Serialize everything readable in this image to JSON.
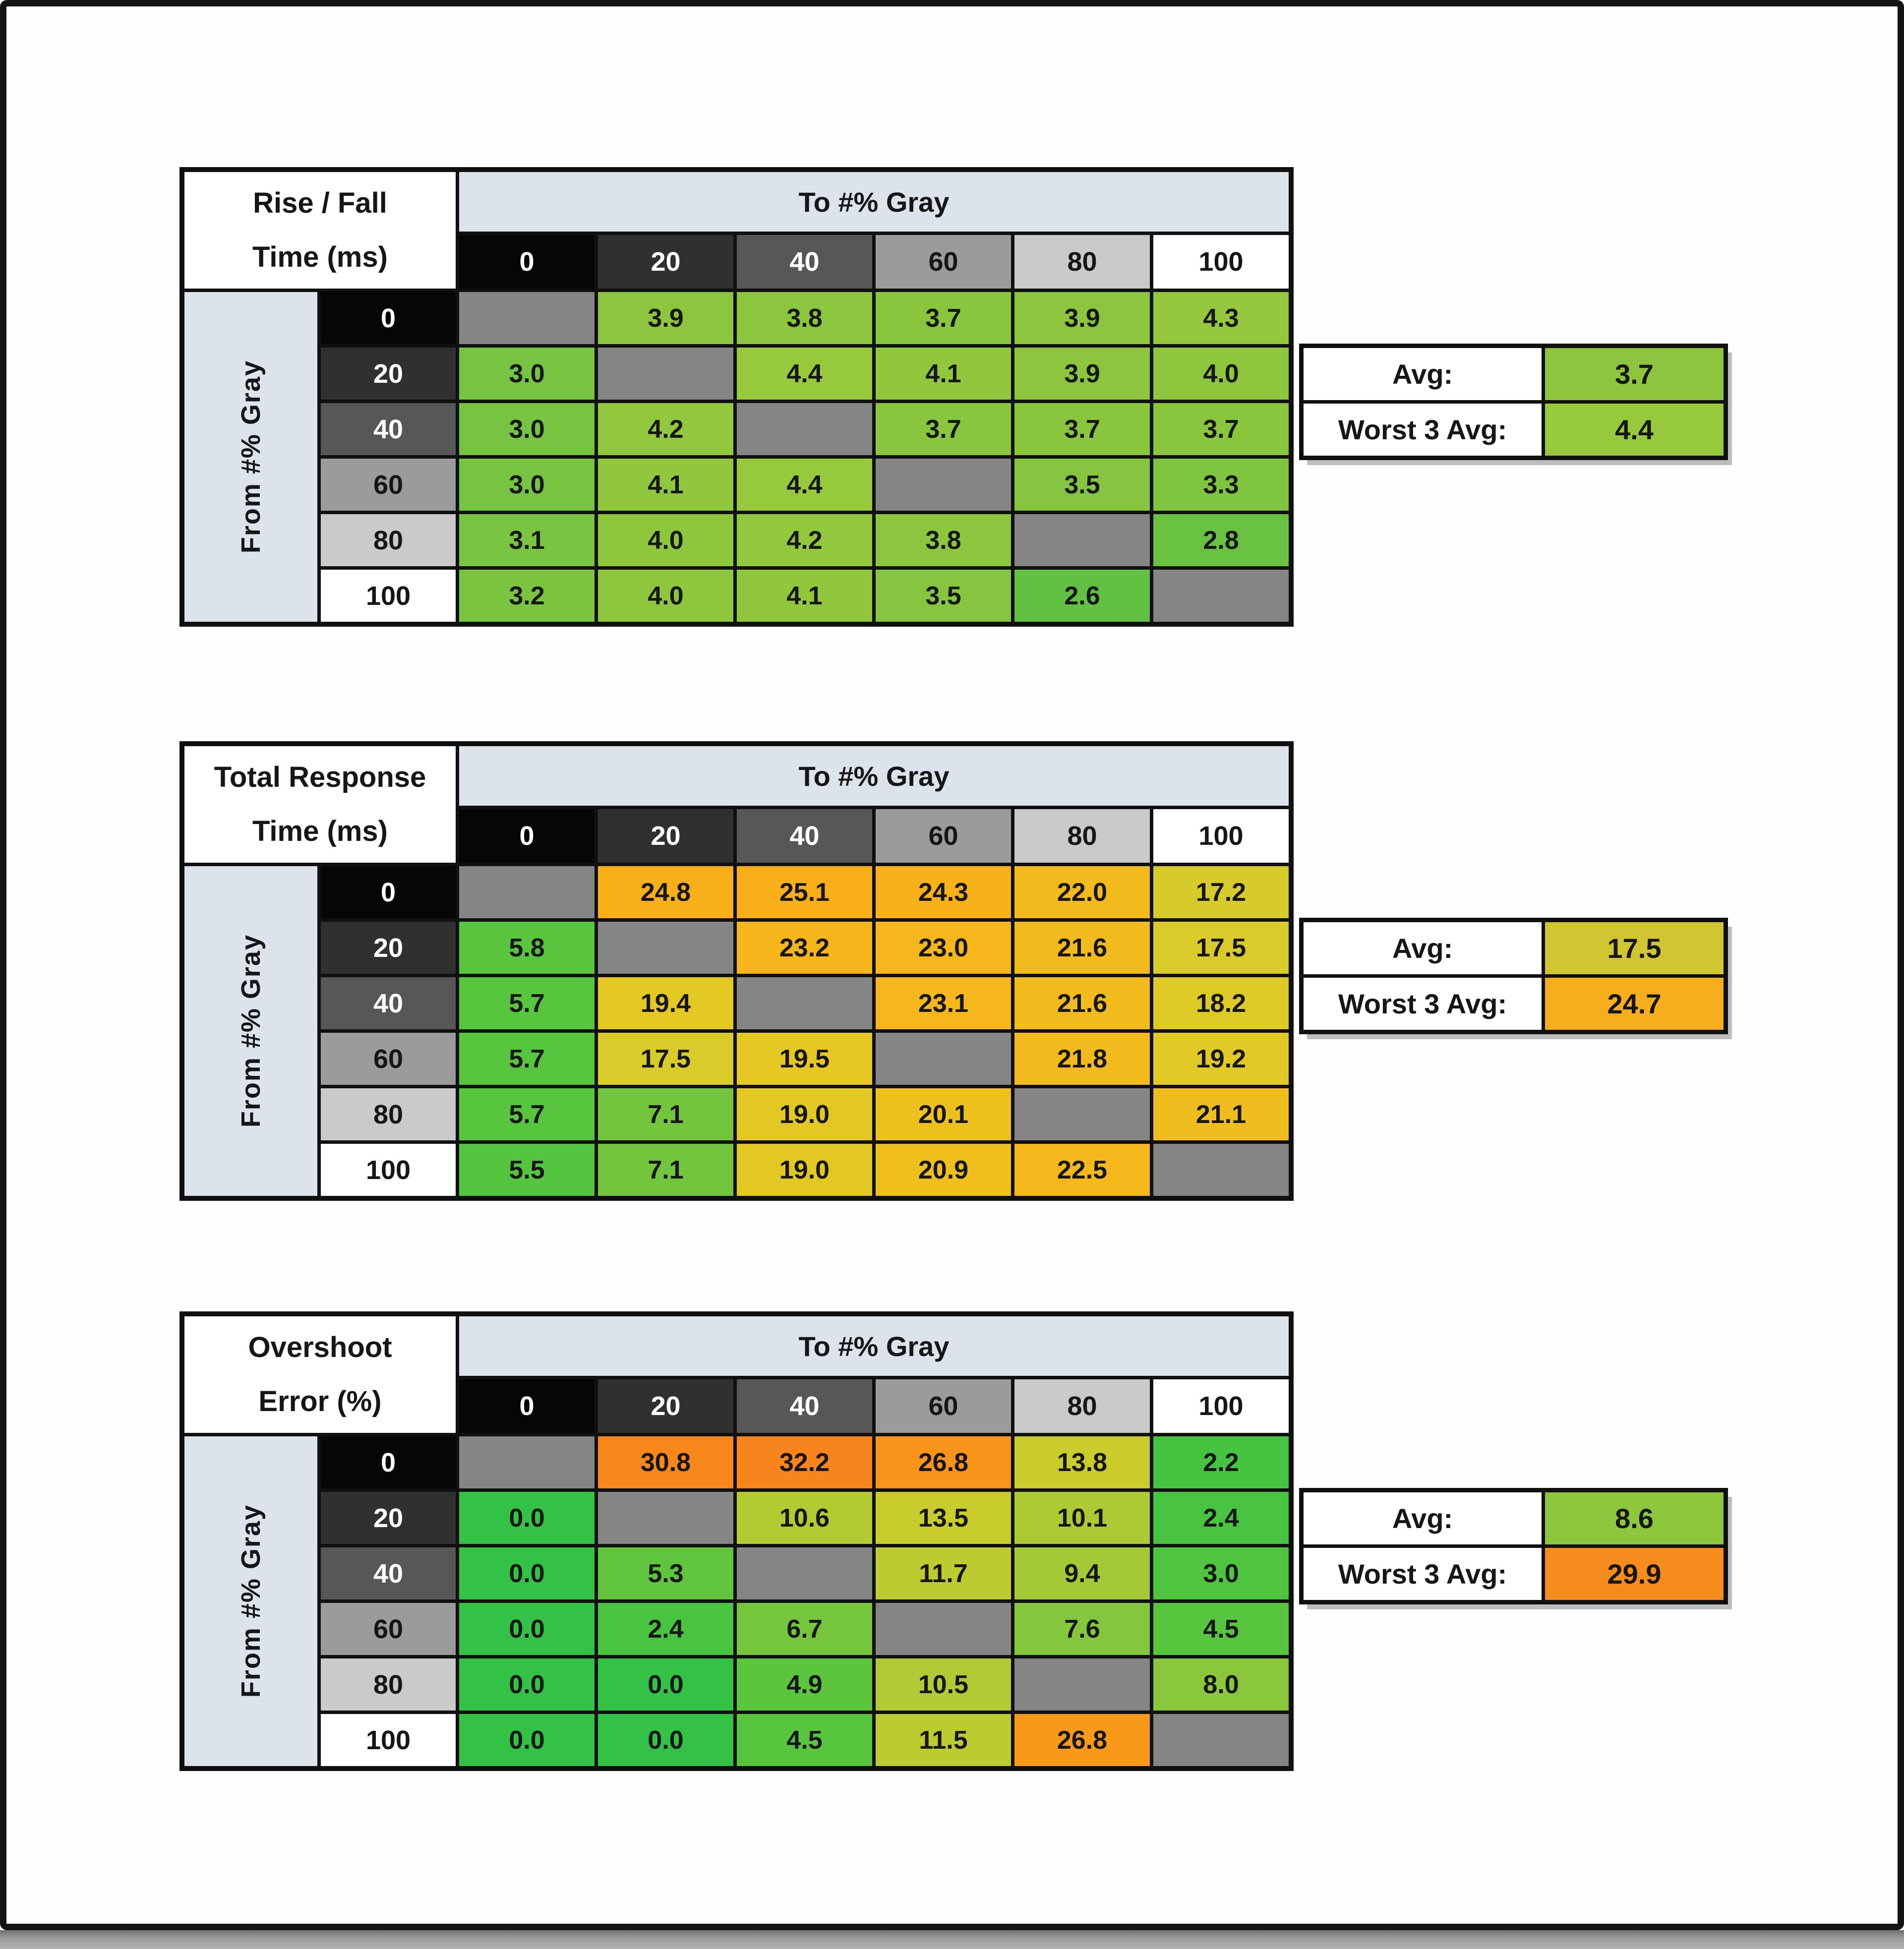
{
  "shared": {
    "to_axis_label": "To #% Gray",
    "from_axis_label": "From #% Gray",
    "levels": [
      "0",
      "20",
      "40",
      "60",
      "80",
      "100"
    ],
    "level_bg": [
      "#060606",
      "#303030",
      "#575757",
      "#9b9b9b",
      "#cacaca",
      "#ffffff"
    ],
    "level_fg": [
      "#ffffff",
      "#ffffff",
      "#ffffff",
      "#161616",
      "#161616",
      "#161616"
    ],
    "header_band_bg": "#dce3ea",
    "diagonal_bg": "#858585",
    "avg_label": "Avg:",
    "worst3_label": "Worst 3 Avg:"
  },
  "chart_data": [
    {
      "type": "heatmap",
      "title": [
        "Rise / Fall",
        "Time (ms)"
      ],
      "x_axis_label": "To #% Gray",
      "y_axis_label": "From #% Gray",
      "x_ticks": [
        "0",
        "20",
        "40",
        "60",
        "80",
        "100"
      ],
      "y_ticks": [
        "0",
        "20",
        "40",
        "60",
        "80",
        "100"
      ],
      "values": [
        [
          null,
          "3.9",
          "3.8",
          "3.7",
          "3.9",
          "4.3"
        ],
        [
          "3.0",
          null,
          "4.4",
          "4.1",
          "3.9",
          "4.0"
        ],
        [
          "3.0",
          "4.2",
          null,
          "3.7",
          "3.7",
          "3.7"
        ],
        [
          "3.0",
          "4.1",
          "4.4",
          null,
          "3.5",
          "3.3"
        ],
        [
          "3.1",
          "4.0",
          "4.2",
          "3.8",
          null,
          "2.8"
        ],
        [
          "3.2",
          "4.0",
          "4.1",
          "3.5",
          "2.6",
          null
        ]
      ],
      "cell_colors": [
        [
          null,
          "#8dc63e",
          "#8bc63e",
          "#89c63e",
          "#8dc63e",
          "#95c83c"
        ],
        [
          "#76c441",
          null,
          "#97c93c",
          "#90c73d",
          "#8dc63e",
          "#8ec73d"
        ],
        [
          "#76c441",
          "#92c83d",
          null,
          "#89c63e",
          "#89c63e",
          "#89c63e"
        ],
        [
          "#76c441",
          "#90c73d",
          "#97c93c",
          null,
          "#85c53f",
          "#7fc540"
        ],
        [
          "#79c441",
          "#8ec73d",
          "#92c83d",
          "#8bc63e",
          null,
          "#69c242"
        ],
        [
          "#7bc440",
          "#8ec73d",
          "#90c73d",
          "#85c53f",
          "#62c143",
          null
        ]
      ],
      "stats": [
        {
          "label": "Avg:",
          "value": "3.7",
          "color": "#8dc63e"
        },
        {
          "label": "Worst 3 Avg:",
          "value": "4.4",
          "color": "#97c93c"
        }
      ]
    },
    {
      "type": "heatmap",
      "title": [
        "Total Response",
        "Time (ms)"
      ],
      "x_axis_label": "To #% Gray",
      "y_axis_label": "From #% Gray",
      "x_ticks": [
        "0",
        "20",
        "40",
        "60",
        "80",
        "100"
      ],
      "y_ticks": [
        "0",
        "20",
        "40",
        "60",
        "80",
        "100"
      ],
      "values": [
        [
          null,
          "24.8",
          "25.1",
          "24.3",
          "22.0",
          "17.2"
        ],
        [
          "5.8",
          null,
          "23.2",
          "23.0",
          "21.6",
          "17.5"
        ],
        [
          "5.7",
          "19.4",
          null,
          "23.1",
          "21.6",
          "18.2"
        ],
        [
          "5.7",
          "17.5",
          "19.5",
          null,
          "21.8",
          "19.2"
        ],
        [
          "5.7",
          "7.1",
          "19.0",
          "20.1",
          null,
          "21.1"
        ],
        [
          "5.5",
          "7.1",
          "19.0",
          "20.9",
          "22.5",
          null
        ]
      ],
      "cell_colors": [
        [
          null,
          "#f8b01a",
          "#f8af1a",
          "#f8b11b",
          "#f3ba1d",
          "#d7cb2b"
        ],
        [
          "#59c53f",
          null,
          "#f5b61c",
          "#f5b71c",
          "#f2bb1d",
          "#d8cb2a"
        ],
        [
          "#58c53f",
          "#e4c823",
          null,
          "#f5b71c",
          "#f2bb1d",
          "#ddca27"
        ],
        [
          "#58c53f",
          "#d8cb2a",
          "#e5c823",
          null,
          "#f2ba1d",
          "#e2c925"
        ],
        [
          "#58c53f",
          "#74c53e",
          "#e3c824",
          "#eec01e",
          null,
          "#f0bd1e"
        ],
        [
          "#55c540",
          "#74c53e",
          "#e3c824",
          "#efbf1e",
          "#f4b81c",
          null
        ]
      ],
      "stats": [
        {
          "label": "Avg:",
          "value": "17.5",
          "color": "#d2c532"
        },
        {
          "label": "Worst 3 Avg:",
          "value": "24.7",
          "color": "#f6ae1c"
        }
      ]
    },
    {
      "type": "heatmap",
      "title": [
        "Overshoot",
        "Error (%)"
      ],
      "x_axis_label": "To #% Gray",
      "y_axis_label": "From #% Gray",
      "x_ticks": [
        "0",
        "20",
        "40",
        "60",
        "80",
        "100"
      ],
      "y_ticks": [
        "0",
        "20",
        "40",
        "60",
        "80",
        "100"
      ],
      "values": [
        [
          null,
          "30.8",
          "32.2",
          "26.8",
          "13.8",
          "2.2"
        ],
        [
          "0.0",
          null,
          "10.6",
          "13.5",
          "10.1",
          "2.4"
        ],
        [
          "0.0",
          "5.3",
          null,
          "11.7",
          "9.4",
          "3.0"
        ],
        [
          "0.0",
          "2.4",
          "6.7",
          null,
          "7.6",
          "4.5"
        ],
        [
          "0.0",
          "0.0",
          "4.9",
          "10.5",
          null,
          "8.0"
        ],
        [
          "0.0",
          "0.0",
          "4.5",
          "11.5",
          "26.8",
          null
        ]
      ],
      "cell_colors": [
        [
          null,
          "#f8881c",
          "#f8841d",
          "#f79419",
          "#cacc2c",
          "#46c441"
        ],
        [
          "#33c146",
          null,
          "#b3ca33",
          "#c8cc2c",
          "#adca34",
          "#48c441"
        ],
        [
          "#33c146",
          "#60c53d",
          null,
          "#becb30",
          "#a3c937",
          "#4ec43f"
        ],
        [
          "#33c146",
          "#48c441",
          "#76c63d",
          null,
          "#84c73c",
          "#58c53e"
        ],
        [
          "#33c146",
          "#33c146",
          "#5cc53e",
          "#b2ca33",
          null,
          "#8ac73c"
        ],
        [
          "#33c146",
          "#33c146",
          "#58c53e",
          "#bccb30",
          "#f79a19",
          null
        ]
      ],
      "stats": [
        {
          "label": "Avg:",
          "value": "8.6",
          "color": "#8cc73d"
        },
        {
          "label": "Worst 3 Avg:",
          "value": "29.9",
          "color": "#f68c1e"
        }
      ]
    }
  ]
}
